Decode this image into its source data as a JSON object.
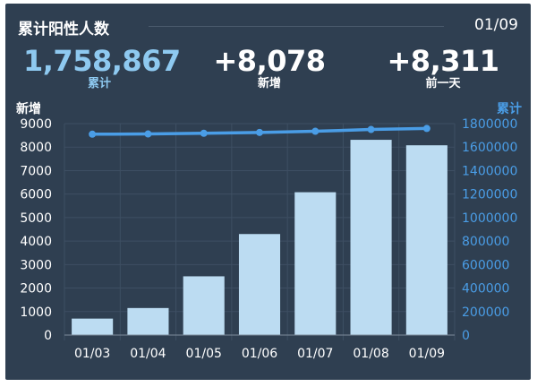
{
  "header": {
    "title": "累计阳性人数",
    "date": "01/09"
  },
  "stats": [
    {
      "value": "1,758,867",
      "label": "累计"
    },
    {
      "value": "+8,078",
      "label": "新增"
    },
    {
      "value": "+8,311",
      "label": "前一天"
    }
  ],
  "chart_data": {
    "type": "bar",
    "categories": [
      "01/03",
      "01/04",
      "01/05",
      "01/06",
      "01/07",
      "01/08",
      "01/09"
    ],
    "series": [
      {
        "name": "新增",
        "kind": "bar",
        "axis": "left",
        "values": [
          700,
          1150,
          2500,
          4300,
          6080,
          8311,
          8078
        ]
      },
      {
        "name": "累计",
        "kind": "line",
        "axis": "right",
        "values": [
          1710000,
          1712000,
          1718000,
          1725000,
          1735000,
          1750000,
          1758867
        ]
      }
    ],
    "ylabel": "新增",
    "ylabel_right": "累计",
    "ylim": [
      0,
      9000
    ],
    "ylim_right": [
      0,
      1800000
    ],
    "yticks_left": [
      0,
      1000,
      2000,
      3000,
      4000,
      5000,
      6000,
      7000,
      8000,
      9000
    ],
    "yticks_right": [
      0,
      200000,
      400000,
      600000,
      800000,
      1000000,
      1200000,
      1400000,
      1600000,
      1800000
    ],
    "grid": true,
    "colors": {
      "bar": "#bcdcf2",
      "line": "#4a9de6",
      "axis_right": "#4a9de6",
      "axis_left": "#ffffff",
      "background": "#2f3f51"
    }
  }
}
